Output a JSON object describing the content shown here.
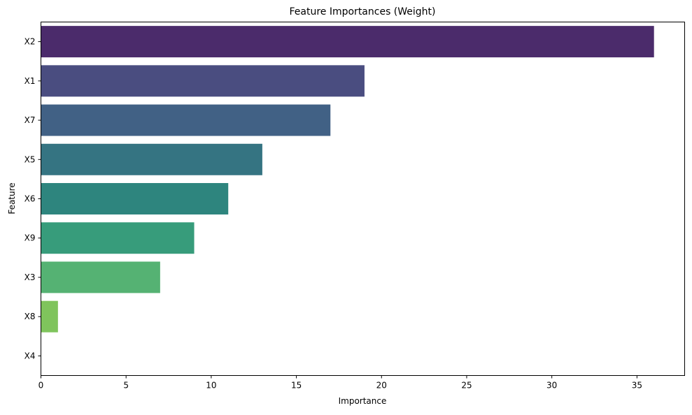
{
  "chart_data": {
    "type": "bar",
    "orientation": "horizontal",
    "title": "Feature Importances (Weight)",
    "xlabel": "Importance",
    "ylabel": "Feature",
    "categories": [
      "X2",
      "X1",
      "X7",
      "X5",
      "X6",
      "X9",
      "X3",
      "X8",
      "X4"
    ],
    "values": [
      36,
      19,
      17,
      13,
      11,
      9,
      7,
      1,
      0
    ],
    "colors": [
      "#4b2b6b",
      "#4a4d80",
      "#416185",
      "#357482",
      "#2e857e",
      "#379c7b",
      "#55b273",
      "#7fc45c",
      "#b6d94a"
    ],
    "xlim": [
      0,
      37.8
    ],
    "xticks": [
      0,
      5,
      10,
      15,
      20,
      25,
      30,
      35
    ],
    "grid": false,
    "legend": "none"
  }
}
